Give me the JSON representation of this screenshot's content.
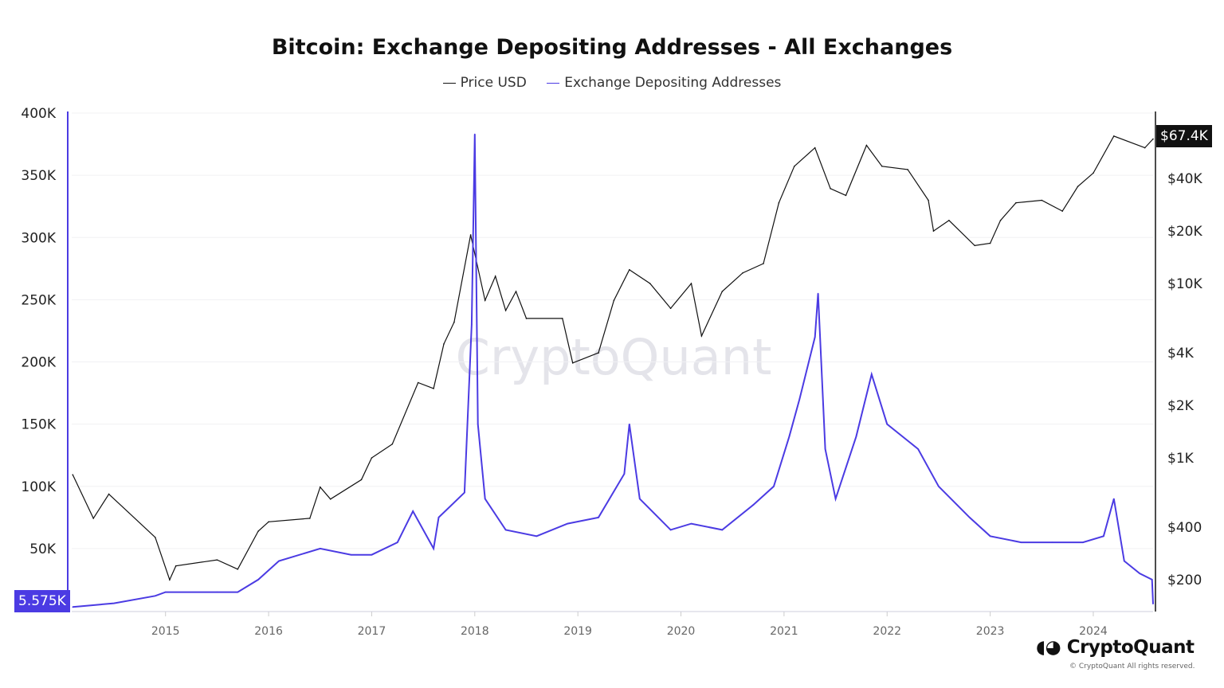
{
  "chart_data": {
    "type": "line",
    "title": "Bitcoin: Exchange Depositing Addresses - All Exchanges",
    "legend_position": "top",
    "grid": true,
    "x_ticks": [
      "2015",
      "2016",
      "2017",
      "2018",
      "2019",
      "2020",
      "2021",
      "2022",
      "2023",
      "2024"
    ],
    "xlim": [
      2014.09,
      2024.58
    ],
    "y_left": {
      "ticks": [
        "50K",
        "100K",
        "150K",
        "200K",
        "250K",
        "300K",
        "350K",
        "400K"
      ],
      "tick_values": [
        50,
        100,
        150,
        200,
        250,
        300,
        350,
        400
      ],
      "ylim": [
        0,
        400
      ],
      "scale": "linear",
      "current_label": "5.575K"
    },
    "y_right": {
      "ticks": [
        "$200",
        "$400",
        "$1K",
        "$2K",
        "$4K",
        "$10K",
        "$20K",
        "$40K"
      ],
      "tick_values": [
        200,
        400,
        1000,
        2000,
        4000,
        10000,
        20000,
        40000
      ],
      "scale": "log",
      "current_label": "$67.4K"
    },
    "series": [
      {
        "name": "Price USD",
        "color": "#111111",
        "axis": "right",
        "x": [
          2014.1,
          2014.3,
          2014.45,
          2014.9,
          2015.04,
          2015.1,
          2015.5,
          2015.7,
          2015.9,
          2016.0,
          2016.4,
          2016.5,
          2016.6,
          2016.9,
          2017.0,
          2017.2,
          2017.45,
          2017.6,
          2017.7,
          2017.8,
          2017.96,
          2018.1,
          2018.2,
          2018.3,
          2018.4,
          2018.5,
          2018.85,
          2018.95,
          2019.2,
          2019.35,
          2019.5,
          2019.7,
          2019.9,
          2020.1,
          2020.2,
          2020.4,
          2020.6,
          2020.8,
          2020.95,
          2021.1,
          2021.3,
          2021.45,
          2021.6,
          2021.8,
          2021.95,
          2022.2,
          2022.4,
          2022.45,
          2022.6,
          2022.85,
          2023.0,
          2023.1,
          2023.25,
          2023.5,
          2023.7,
          2023.85,
          2024.0,
          2024.2,
          2024.5,
          2024.58
        ],
        "values": [
          800,
          450,
          620,
          350,
          200,
          240,
          260,
          230,
          380,
          430,
          450,
          680,
          580,
          750,
          1000,
          1200,
          2700,
          2500,
          4500,
          6000,
          19000,
          8000,
          11000,
          7000,
          9000,
          6300,
          6300,
          3500,
          4000,
          8000,
          12000,
          10000,
          7200,
          10000,
          5000,
          9000,
          11500,
          13000,
          29000,
          47000,
          60000,
          35000,
          32000,
          62000,
          47000,
          45000,
          30000,
          20000,
          23000,
          16500,
          17000,
          23000,
          29000,
          30000,
          26000,
          36000,
          43000,
          70000,
          60000,
          67400
        ]
      },
      {
        "name": "Exchange Depositing Addresses",
        "color": "#4B3BE3",
        "axis": "left",
        "x": [
          2014.1,
          2014.5,
          2014.9,
          2015.0,
          2015.5,
          2015.7,
          2015.9,
          2016.1,
          2016.5,
          2016.8,
          2017.0,
          2017.25,
          2017.4,
          2017.6,
          2017.65,
          2017.9,
          2017.97,
          2018.0,
          2018.03,
          2018.1,
          2018.3,
          2018.6,
          2018.9,
          2019.2,
          2019.45,
          2019.5,
          2019.6,
          2019.9,
          2020.1,
          2020.4,
          2020.7,
          2020.9,
          2021.05,
          2021.15,
          2021.3,
          2021.33,
          2021.4,
          2021.5,
          2021.7,
          2021.85,
          2022.0,
          2022.3,
          2022.5,
          2022.8,
          2023.0,
          2023.3,
          2023.6,
          2023.9,
          2024.1,
          2024.2,
          2024.3,
          2024.45,
          2024.57,
          2024.58
        ],
        "values": [
          3,
          6,
          12,
          15,
          15,
          15,
          25,
          40,
          50,
          45,
          45,
          55,
          80,
          50,
          75,
          95,
          230,
          383,
          150,
          90,
          65,
          60,
          70,
          75,
          110,
          150,
          90,
          65,
          70,
          65,
          85,
          100,
          140,
          170,
          220,
          255,
          130,
          90,
          140,
          190,
          150,
          130,
          100,
          75,
          60,
          55,
          55,
          55,
          60,
          90,
          40,
          30,
          25,
          5.575
        ]
      }
    ]
  },
  "watermark": "CryptoQuant",
  "logo_text": "CryptoQuant",
  "copyright": "© CryptoQuant All rights reserved."
}
